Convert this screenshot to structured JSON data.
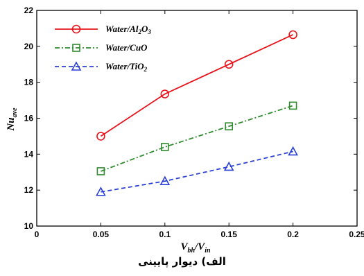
{
  "chart_data": {
    "type": "line",
    "title": "",
    "xlabel": {
      "main": "V",
      "sub1": "bh",
      "sep": "/V",
      "sub2": "in"
    },
    "ylabel": {
      "main": "Nu",
      "sub": "ave"
    },
    "xlim": [
      0,
      0.25
    ],
    "ylim": [
      10,
      22
    ],
    "xticks": [
      "0",
      "0.05",
      "0.1",
      "0.15",
      "0.2",
      "0.25"
    ],
    "yticks": [
      "10",
      "12",
      "14",
      "16",
      "18",
      "20",
      "22"
    ],
    "grid": false,
    "legend_position": "top-left",
    "x": [
      0.05,
      0.1,
      0.15,
      0.2
    ],
    "series": [
      {
        "name": "Water/Al2O3",
        "label_parts": [
          "Water/Al",
          "2",
          "O",
          "3"
        ],
        "values": [
          15.0,
          17.35,
          19.0,
          20.65
        ],
        "color": "#e8141c",
        "marker": "circle",
        "dash": ""
      },
      {
        "name": "Water/CuO",
        "label_parts": [
          "Water/CuO"
        ],
        "values": [
          13.05,
          14.4,
          15.55,
          16.7
        ],
        "color": "#2e8b2e",
        "marker": "square",
        "dash": "7 3 2 3"
      },
      {
        "name": "Water/TiO2",
        "label_parts": [
          "Water/TiO",
          "2"
        ],
        "values": [
          11.9,
          12.5,
          13.3,
          14.15
        ],
        "color": "#2a3fd6",
        "marker": "triangle",
        "dash": "6 4"
      }
    ]
  },
  "caption": "الف) دیوار پایینی"
}
